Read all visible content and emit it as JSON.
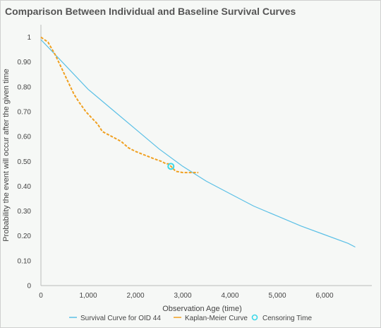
{
  "chart_data": {
    "type": "line",
    "title": "Comparison Between Individual and Baseline Survival Curves",
    "xlabel": "Observation Age (time)",
    "ylabel": "Probability the event will occur after the given time",
    "xlim": [
      0,
      7000
    ],
    "ylim": [
      0,
      1.05
    ],
    "x_ticks": [
      0,
      1000,
      2000,
      3000,
      4000,
      5000,
      6000
    ],
    "x_tick_labels": [
      "0",
      "1,000",
      "2,000",
      "3,000",
      "4,000",
      "5,000",
      "6,000"
    ],
    "y_ticks": [
      0,
      0.1,
      0.2,
      0.3,
      0.4,
      0.5,
      0.6,
      0.7,
      0.8,
      0.9,
      1
    ],
    "y_tick_labels": [
      "0",
      "0.10",
      "0.20",
      "0.30",
      "0.40",
      "0.50",
      "0.60",
      "0.70",
      "0.80",
      "0.90",
      "1"
    ],
    "grid": false,
    "legend_position": "bottom",
    "series": [
      {
        "name": "Survival Curve for OID 44",
        "style": "solid",
        "color": "#5bc0e6",
        "x": [
          0,
          500,
          1000,
          1500,
          2000,
          2500,
          3000,
          3500,
          4000,
          4500,
          5000,
          5500,
          6000,
          6500,
          6650
        ],
        "y": [
          0.99,
          0.89,
          0.79,
          0.71,
          0.63,
          0.55,
          0.48,
          0.42,
          0.37,
          0.32,
          0.28,
          0.24,
          0.205,
          0.17,
          0.155
        ]
      },
      {
        "name": "Kaplan-Meier Curve",
        "style": "dashed",
        "color": "#f0a020",
        "x": [
          0,
          150,
          300,
          450,
          550,
          700,
          800,
          950,
          1050,
          1200,
          1300,
          1500,
          1700,
          1850,
          2000,
          2200,
          2400,
          2550,
          2650,
          2700,
          2750,
          2850,
          3000,
          3200,
          3330
        ],
        "y": [
          1.0,
          0.98,
          0.93,
          0.87,
          0.83,
          0.77,
          0.74,
          0.7,
          0.68,
          0.65,
          0.62,
          0.6,
          0.58,
          0.555,
          0.54,
          0.525,
          0.51,
          0.5,
          0.49,
          0.49,
          0.48,
          0.46,
          0.455,
          0.455,
          0.455
        ]
      },
      {
        "name": "Censoring Time",
        "style": "marker",
        "color": "#3dd8e8",
        "x": [
          2750
        ],
        "y": [
          0.48
        ]
      }
    ]
  }
}
